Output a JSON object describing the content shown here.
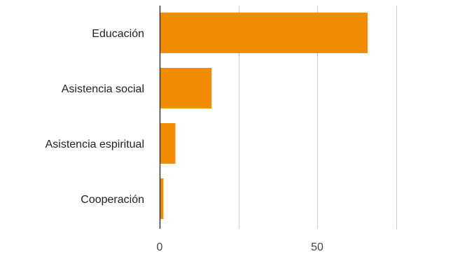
{
  "chart_data": {
    "type": "bar",
    "orientation": "horizontal",
    "categories": [
      "Educación",
      "Asistencia social",
      "Asistencia espiritual",
      "Cooperación"
    ],
    "values": [
      66,
      16.5,
      5,
      1.2
    ],
    "xlim": [
      0,
      100
    ],
    "xticks": [
      0,
      50
    ],
    "gridlines": [
      0,
      25,
      50,
      75,
      100
    ],
    "grid": true,
    "legend": "none",
    "bar_color": "#f28c00",
    "grid_color": "#cccccc",
    "axis_color": "#333333"
  }
}
